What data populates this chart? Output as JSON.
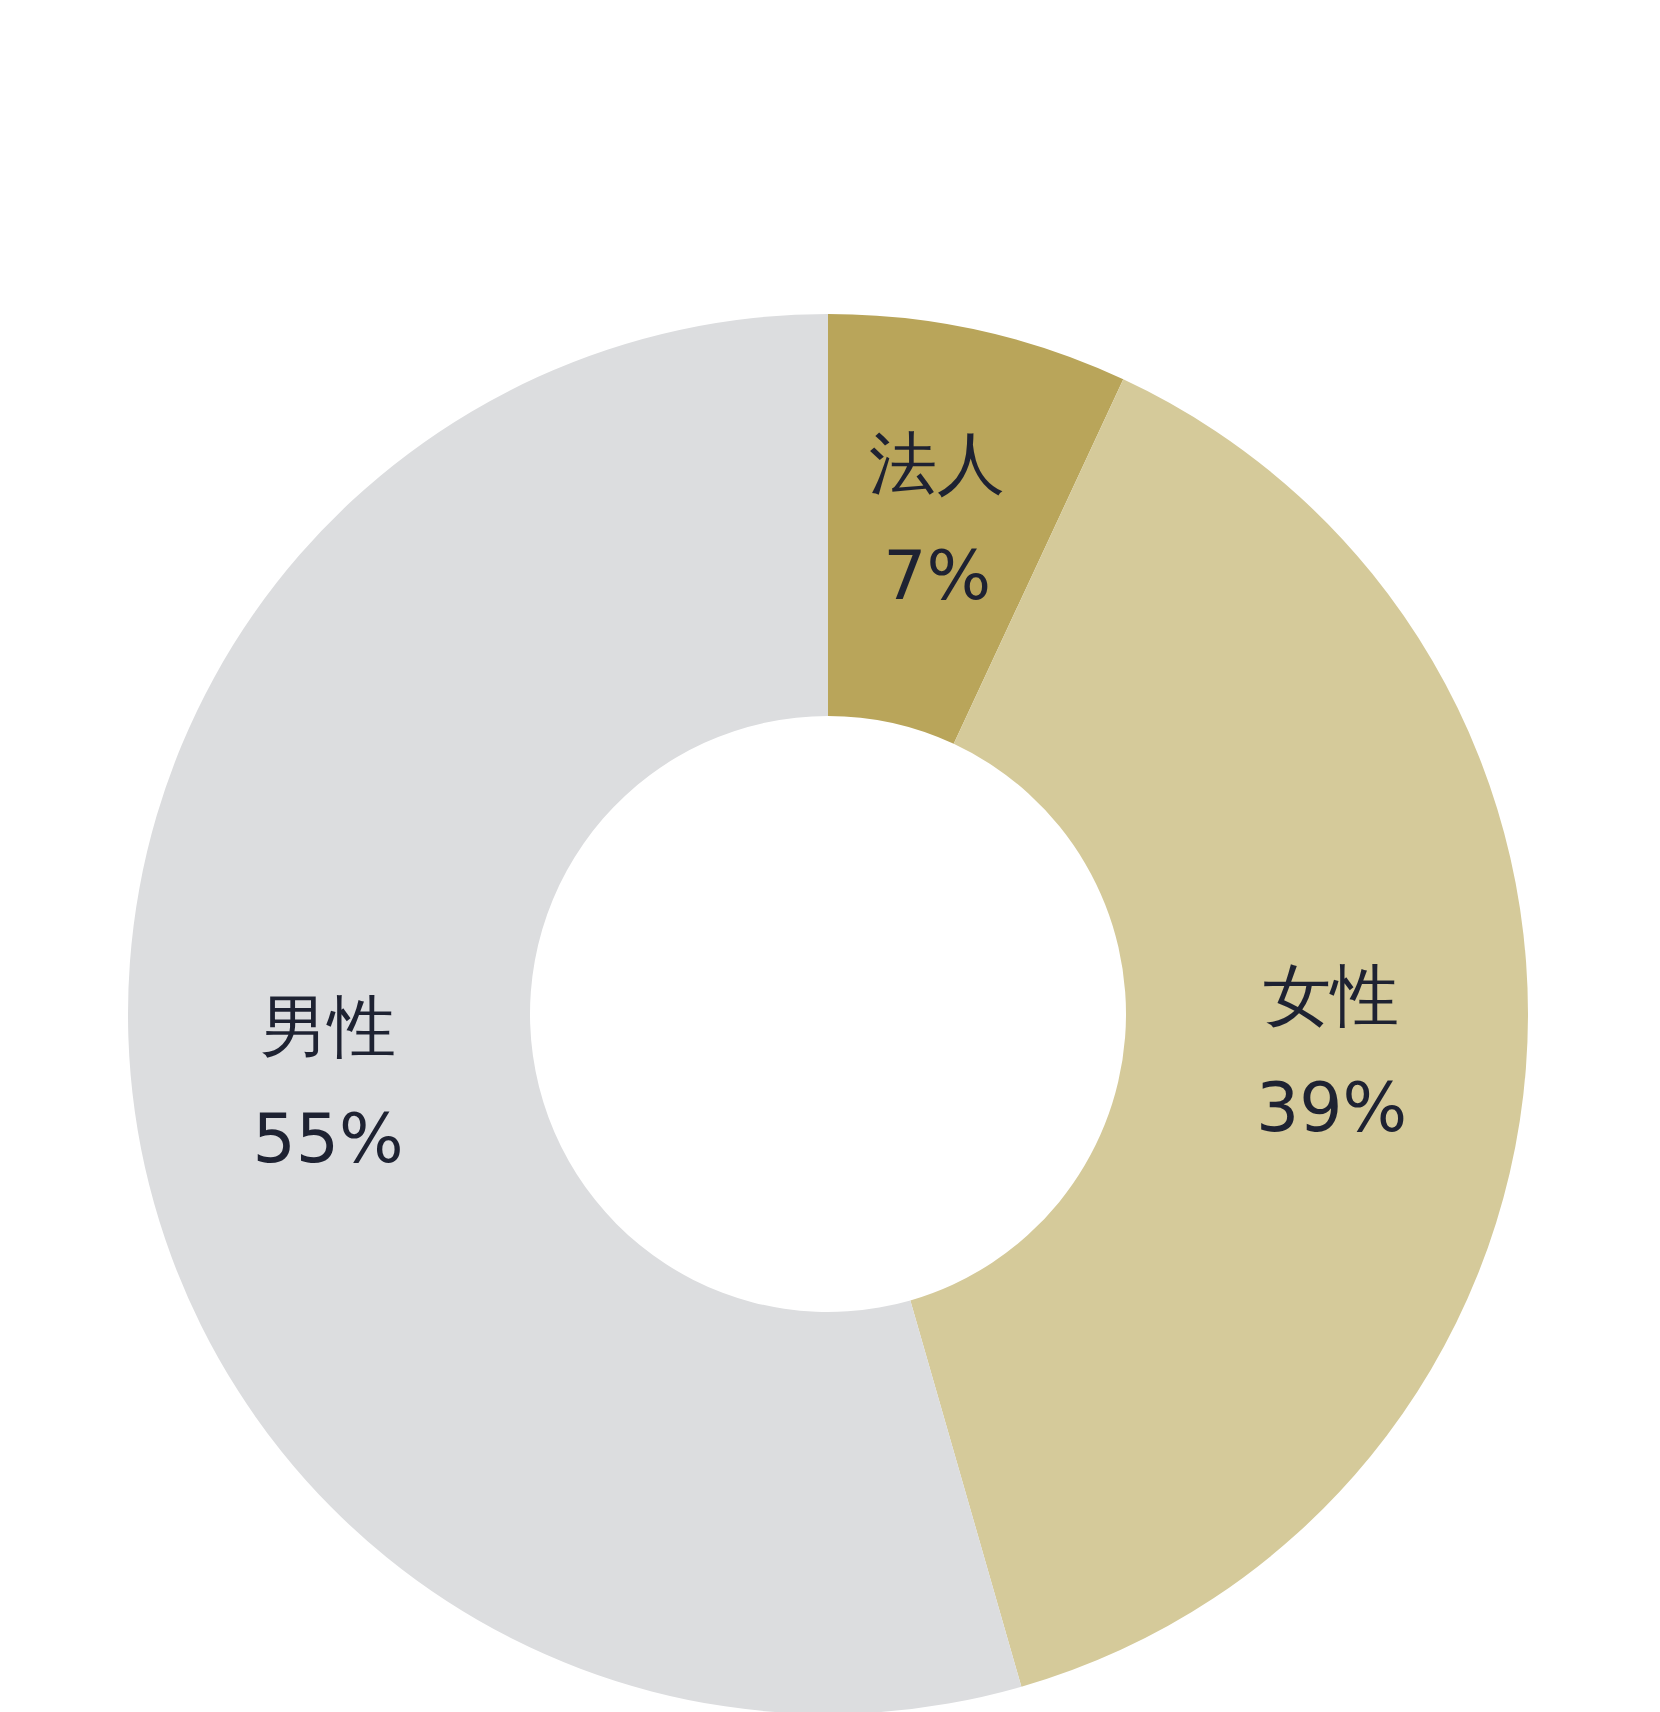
{
  "chart_data": {
    "type": "donut",
    "categories": [
      "法人",
      "女性",
      "男性"
    ],
    "values": [
      7,
      39,
      55
    ],
    "colors": [
      "#b9a55a",
      "#d5ca9a",
      "#dcdddf"
    ],
    "value_labels": [
      "7%",
      "39%",
      "55%"
    ],
    "legend": false
  }
}
